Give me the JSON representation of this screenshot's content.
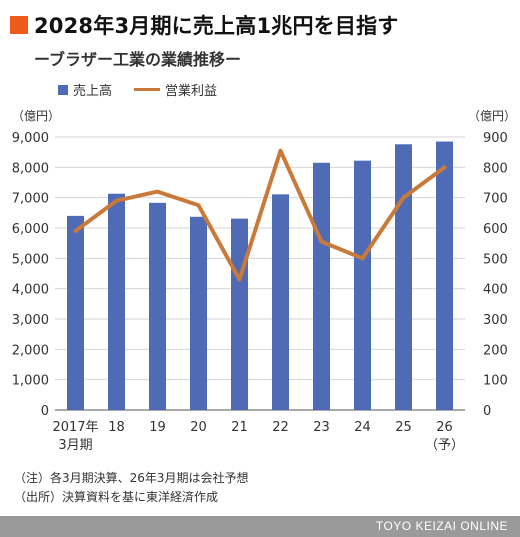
{
  "header": {
    "title": "2028年3月期に売上高1兆円を目指す",
    "subtitle": "ーブラザー工業の業績推移ー"
  },
  "legend": {
    "bar_label": "売上高",
    "line_label": "営業利益"
  },
  "units": {
    "left": "（億円）",
    "right": "（億円）"
  },
  "notes": {
    "line1": "（注）各3月期決算、26年3月期は会社予想",
    "line2": "（出所）決算資料を基に東洋経済作成"
  },
  "footer": {
    "brand": "TOYO KEIZAI ONLINE"
  },
  "chart_data": {
    "type": "bar",
    "categories": [
      [
        "2017年",
        "3月期"
      ],
      [
        "18"
      ],
      [
        "19"
      ],
      [
        "20"
      ],
      [
        "21"
      ],
      [
        "22"
      ],
      [
        "23"
      ],
      [
        "24"
      ],
      [
        "25"
      ],
      [
        "26",
        "（予）"
      ]
    ],
    "series": [
      {
        "name": "売上高",
        "type": "bar",
        "axis": "left",
        "color": "#4f6bb5",
        "values": [
          6400,
          7130,
          6830,
          6370,
          6310,
          7110,
          8150,
          8220,
          8760,
          8850
        ]
      },
      {
        "name": "営業利益",
        "type": "line",
        "axis": "right",
        "color": "#c9793a",
        "values": [
          590,
          690,
          720,
          675,
          430,
          855,
          555,
          500,
          700,
          800
        ]
      }
    ],
    "ylim_left": [
      0,
      9000
    ],
    "ylim_right": [
      0,
      900
    ],
    "yticks_left": [
      "0",
      "1,000",
      "2,000",
      "3,000",
      "4,000",
      "5,000",
      "6,000",
      "7,000",
      "8,000",
      "9,000"
    ],
    "yticks_right": [
      "0",
      "100",
      "200",
      "300",
      "400",
      "500",
      "600",
      "700",
      "800",
      "900"
    ],
    "grid": true
  }
}
